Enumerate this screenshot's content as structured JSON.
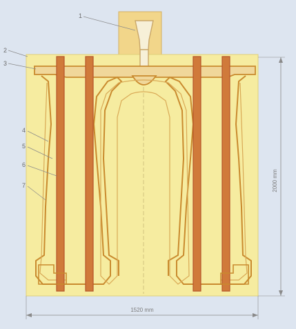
{
  "figure": {
    "callouts": {
      "c1": "1",
      "c2": "2",
      "c3": "3",
      "c4": "4",
      "c5": "5",
      "c6": "6",
      "c7": "7"
    },
    "dimensions": {
      "width": "1520 mm",
      "height": "2000 mm"
    },
    "colors": {
      "background": "#dde5f0",
      "mold_fill": "#f6eca0",
      "cavity_line": "#c98a2e",
      "core_bar": "#c8632c",
      "dimension_line": "#8a8a8a"
    }
  }
}
